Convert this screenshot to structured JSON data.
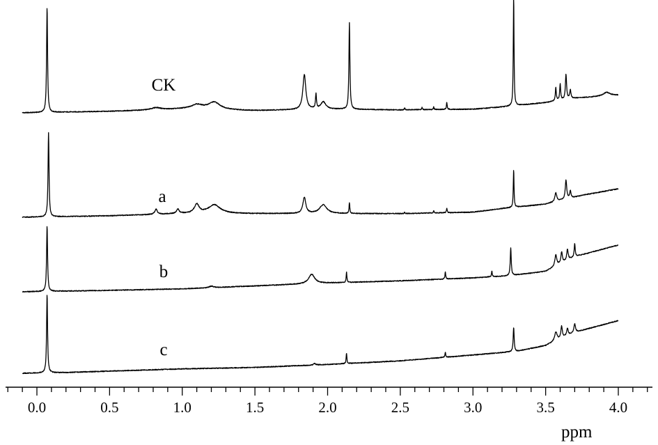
{
  "chart_data": {
    "type": "line",
    "title": "",
    "xlabel": "ppm",
    "ylabel": "",
    "xlim": [
      -0.2,
      4.2
    ],
    "xticks": [
      "0.0",
      "0.5",
      "1.0",
      "1.5",
      "2.0",
      "2.5",
      "3.0",
      "3.5",
      "4.0"
    ],
    "minor_tick_step": 0.1,
    "grid": false,
    "legend": "none",
    "series": [
      {
        "name": "CK",
        "baseline": [
          [
            -0.1,
            0.0
          ],
          [
            0.2,
            0.01
          ],
          [
            0.5,
            0.02
          ],
          [
            1.0,
            0.05
          ],
          [
            1.5,
            0.03
          ],
          [
            2.0,
            0.05
          ],
          [
            2.5,
            0.04
          ],
          [
            3.0,
            0.05
          ],
          [
            3.2,
            0.08
          ],
          [
            3.5,
            0.14
          ],
          [
            3.7,
            0.2
          ],
          [
            4.0,
            0.24
          ]
        ],
        "peaks": [
          [
            0.07,
            1.44,
            0.004
          ],
          [
            0.82,
            0.03,
            0.04
          ],
          [
            1.1,
            0.06,
            0.05
          ],
          [
            1.22,
            0.1,
            0.05
          ],
          [
            1.84,
            0.48,
            0.012
          ],
          [
            1.92,
            0.2,
            0.004
          ],
          [
            1.97,
            0.1,
            0.02
          ],
          [
            2.15,
            1.18,
            0.004
          ],
          [
            2.53,
            0.03,
            0.003
          ],
          [
            2.65,
            0.03,
            0.003
          ],
          [
            2.73,
            0.04,
            0.003
          ],
          [
            2.82,
            0.1,
            0.003
          ],
          [
            3.28,
            1.52,
            0.003
          ],
          [
            3.57,
            0.18,
            0.004
          ],
          [
            3.6,
            0.22,
            0.004
          ],
          [
            3.64,
            0.34,
            0.005
          ],
          [
            3.67,
            0.12,
            0.005
          ],
          [
            3.92,
            0.05,
            0.03
          ]
        ]
      },
      {
        "name": "a",
        "baseline": [
          [
            -0.1,
            0.0
          ],
          [
            0.2,
            0.01
          ],
          [
            0.5,
            0.02
          ],
          [
            1.0,
            0.05
          ],
          [
            1.5,
            0.05
          ],
          [
            2.0,
            0.05
          ],
          [
            2.5,
            0.05
          ],
          [
            3.0,
            0.07
          ],
          [
            3.2,
            0.12
          ],
          [
            3.5,
            0.18
          ],
          [
            3.75,
            0.3
          ],
          [
            4.0,
            0.39
          ]
        ],
        "peaks": [
          [
            0.08,
            1.15,
            0.004
          ],
          [
            0.82,
            0.07,
            0.01
          ],
          [
            0.97,
            0.06,
            0.01
          ],
          [
            1.1,
            0.12,
            0.02
          ],
          [
            1.22,
            0.12,
            0.05
          ],
          [
            1.84,
            0.22,
            0.012
          ],
          [
            1.97,
            0.12,
            0.03
          ],
          [
            2.15,
            0.15,
            0.003
          ],
          [
            2.53,
            0.02,
            0.003
          ],
          [
            2.73,
            0.03,
            0.003
          ],
          [
            2.82,
            0.06,
            0.003
          ],
          [
            3.28,
            0.52,
            0.003
          ],
          [
            3.57,
            0.12,
            0.008
          ],
          [
            3.64,
            0.26,
            0.006
          ],
          [
            3.67,
            0.1,
            0.005
          ]
        ]
      },
      {
        "name": "b",
        "baseline": [
          [
            -0.1,
            0.0
          ],
          [
            0.2,
            0.01
          ],
          [
            0.5,
            0.02
          ],
          [
            1.0,
            0.04
          ],
          [
            1.5,
            0.08
          ],
          [
            2.0,
            0.12
          ],
          [
            2.5,
            0.15
          ],
          [
            3.0,
            0.19
          ],
          [
            3.25,
            0.22
          ],
          [
            3.5,
            0.28
          ],
          [
            3.7,
            0.48
          ],
          [
            4.0,
            0.64
          ]
        ],
        "peaks": [
          [
            0.07,
            0.9,
            0.004
          ],
          [
            1.2,
            0.02,
            0.02
          ],
          [
            1.89,
            0.13,
            0.025
          ],
          [
            2.13,
            0.14,
            0.003
          ],
          [
            2.81,
            0.1,
            0.003
          ],
          [
            3.13,
            0.08,
            0.003
          ],
          [
            3.26,
            0.38,
            0.004
          ],
          [
            3.57,
            0.15,
            0.008
          ],
          [
            3.61,
            0.15,
            0.006
          ],
          [
            3.65,
            0.15,
            0.006
          ],
          [
            3.7,
            0.18,
            0.004
          ]
        ]
      },
      {
        "name": "c",
        "baseline": [
          [
            -0.1,
            0.0
          ],
          [
            0.2,
            0.01
          ],
          [
            0.5,
            0.03
          ],
          [
            1.0,
            0.06
          ],
          [
            1.5,
            0.08
          ],
          [
            2.0,
            0.12
          ],
          [
            2.5,
            0.17
          ],
          [
            3.0,
            0.25
          ],
          [
            3.3,
            0.3
          ],
          [
            3.5,
            0.38
          ],
          [
            3.7,
            0.56
          ],
          [
            4.0,
            0.72
          ]
        ],
        "peaks": [
          [
            0.07,
            1.08,
            0.004
          ],
          [
            1.91,
            0.02,
            0.01
          ],
          [
            2.13,
            0.14,
            0.003
          ],
          [
            2.81,
            0.07,
            0.003
          ],
          [
            3.28,
            0.33,
            0.004
          ],
          [
            3.57,
            0.12,
            0.01
          ],
          [
            3.61,
            0.16,
            0.006
          ],
          [
            3.65,
            0.1,
            0.006
          ],
          [
            3.7,
            0.12,
            0.006
          ]
        ]
      }
    ]
  }
}
